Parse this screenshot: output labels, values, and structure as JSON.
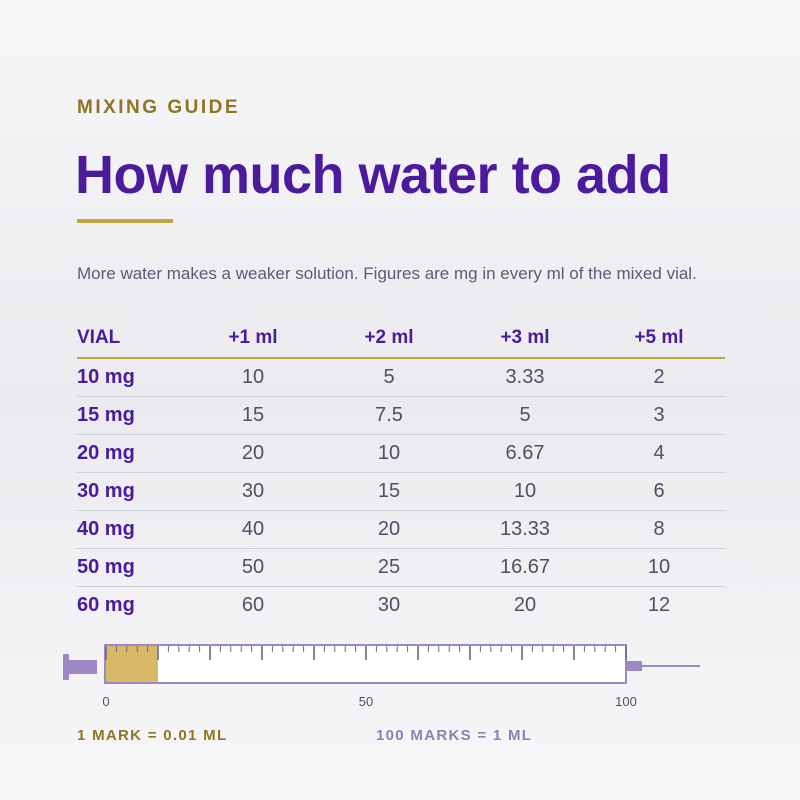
{
  "eyebrow": "MIXING GUIDE",
  "title": "How much water to add",
  "subtitle": "More water makes a weaker solution. Figures are mg in every ml of the mixed vial.",
  "table": {
    "headers": [
      "VIAL",
      "+1 ml",
      "+2 ml",
      "+3 ml",
      "+5 ml"
    ],
    "rows": [
      [
        "10 mg",
        "10",
        "5",
        "3.33",
        "2"
      ],
      [
        "15 mg",
        "15",
        "7.5",
        "5",
        "3"
      ],
      [
        "20 mg",
        "20",
        "10",
        "6.67",
        "4"
      ],
      [
        "30 mg",
        "30",
        "15",
        "10",
        "6"
      ],
      [
        "40 mg",
        "40",
        "20",
        "13.33",
        "8"
      ],
      [
        "50 mg",
        "50",
        "25",
        "16.67",
        "10"
      ],
      [
        "60 mg",
        "60",
        "30",
        "20",
        "12"
      ]
    ]
  },
  "syringe": {
    "scale_labels": [
      "0",
      "50",
      "100"
    ],
    "filled_marks": 10,
    "total_marks": 100,
    "fill_color": "#d9b867",
    "barrel_color": "#9c88c4"
  },
  "notes": {
    "left": "1 MARK = 0.01 ML",
    "right": "100 MARKS = 1 ML"
  }
}
